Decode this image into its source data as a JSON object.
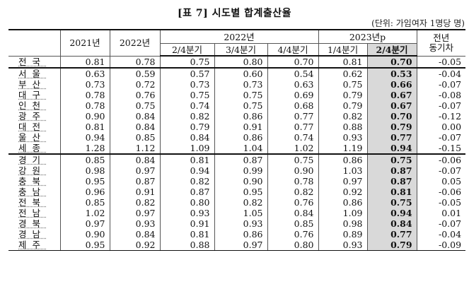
{
  "title": "[표 7] 시도별 합계출산율",
  "unit": "(단위: 가임여자 1명당 명)",
  "header": {
    "y2021": "2021년",
    "y2022": "2022년",
    "g2022": "2022년",
    "g2023": "2023년p",
    "change": "전년\n동기차",
    "q2_2022": "2/4분기",
    "q3_2022": "3/4분기",
    "q4_2022": "4/4분기",
    "q1_2023": "1/4분기",
    "q2_2023": "2/4분기"
  },
  "rows": [
    {
      "region": "전국",
      "v": [
        "0.81",
        "0.78",
        "0.75",
        "0.80",
        "0.70",
        "0.81",
        "0.70",
        "-0.05"
      ]
    },
    {
      "region": "서울",
      "v": [
        "0.63",
        "0.59",
        "0.57",
        "0.60",
        "0.54",
        "0.62",
        "0.53",
        "-0.04"
      ]
    },
    {
      "region": "부산",
      "v": [
        "0.73",
        "0.72",
        "0.73",
        "0.73",
        "0.63",
        "0.75",
        "0.66",
        "-0.07"
      ]
    },
    {
      "region": "대구",
      "v": [
        "0.78",
        "0.76",
        "0.75",
        "0.75",
        "0.69",
        "0.79",
        "0.67",
        "-0.08"
      ]
    },
    {
      "region": "인천",
      "v": [
        "0.78",
        "0.75",
        "0.74",
        "0.75",
        "0.68",
        "0.79",
        "0.67",
        "-0.07"
      ]
    },
    {
      "region": "광주",
      "v": [
        "0.90",
        "0.84",
        "0.82",
        "0.86",
        "0.77",
        "0.82",
        "0.70",
        "-0.12"
      ]
    },
    {
      "region": "대전",
      "v": [
        "0.81",
        "0.84",
        "0.79",
        "0.91",
        "0.77",
        "0.88",
        "0.79",
        "0.00"
      ]
    },
    {
      "region": "울산",
      "v": [
        "0.94",
        "0.85",
        "0.84",
        "0.86",
        "0.74",
        "0.93",
        "0.77",
        "-0.07"
      ]
    },
    {
      "region": "세종",
      "v": [
        "1.28",
        "1.12",
        "1.09",
        "1.04",
        "1.02",
        "1.19",
        "0.94",
        "-0.15"
      ]
    },
    {
      "region": "경기",
      "v": [
        "0.85",
        "0.84",
        "0.81",
        "0.87",
        "0.75",
        "0.86",
        "0.75",
        "-0.06"
      ]
    },
    {
      "region": "강원",
      "v": [
        "0.98",
        "0.97",
        "0.94",
        "0.99",
        "0.90",
        "1.03",
        "0.87",
        "-0.07"
      ]
    },
    {
      "region": "충북",
      "v": [
        "0.95",
        "0.87",
        "0.82",
        "0.90",
        "0.78",
        "0.97",
        "0.87",
        "0.05"
      ]
    },
    {
      "region": "충남",
      "v": [
        "0.96",
        "0.91",
        "0.87",
        "0.95",
        "0.82",
        "0.92",
        "0.81",
        "-0.06"
      ]
    },
    {
      "region": "전북",
      "v": [
        "0.85",
        "0.82",
        "0.80",
        "0.82",
        "0.76",
        "0.86",
        "0.75",
        "-0.05"
      ]
    },
    {
      "region": "전남",
      "v": [
        "1.02",
        "0.97",
        "0.93",
        "1.05",
        "0.84",
        "1.09",
        "0.94",
        "0.01"
      ]
    },
    {
      "region": "경북",
      "v": [
        "0.97",
        "0.93",
        "0.91",
        "0.93",
        "0.85",
        "0.98",
        "0.84",
        "-0.07"
      ]
    },
    {
      "region": "경남",
      "v": [
        "0.90",
        "0.84",
        "0.81",
        "0.86",
        "0.76",
        "0.89",
        "0.77",
        "-0.04"
      ]
    },
    {
      "region": "제주",
      "v": [
        "0.95",
        "0.92",
        "0.88",
        "0.97",
        "0.80",
        "0.93",
        "0.79",
        "-0.09"
      ]
    }
  ],
  "colors": {
    "highlight": "#d9d9d9"
  }
}
